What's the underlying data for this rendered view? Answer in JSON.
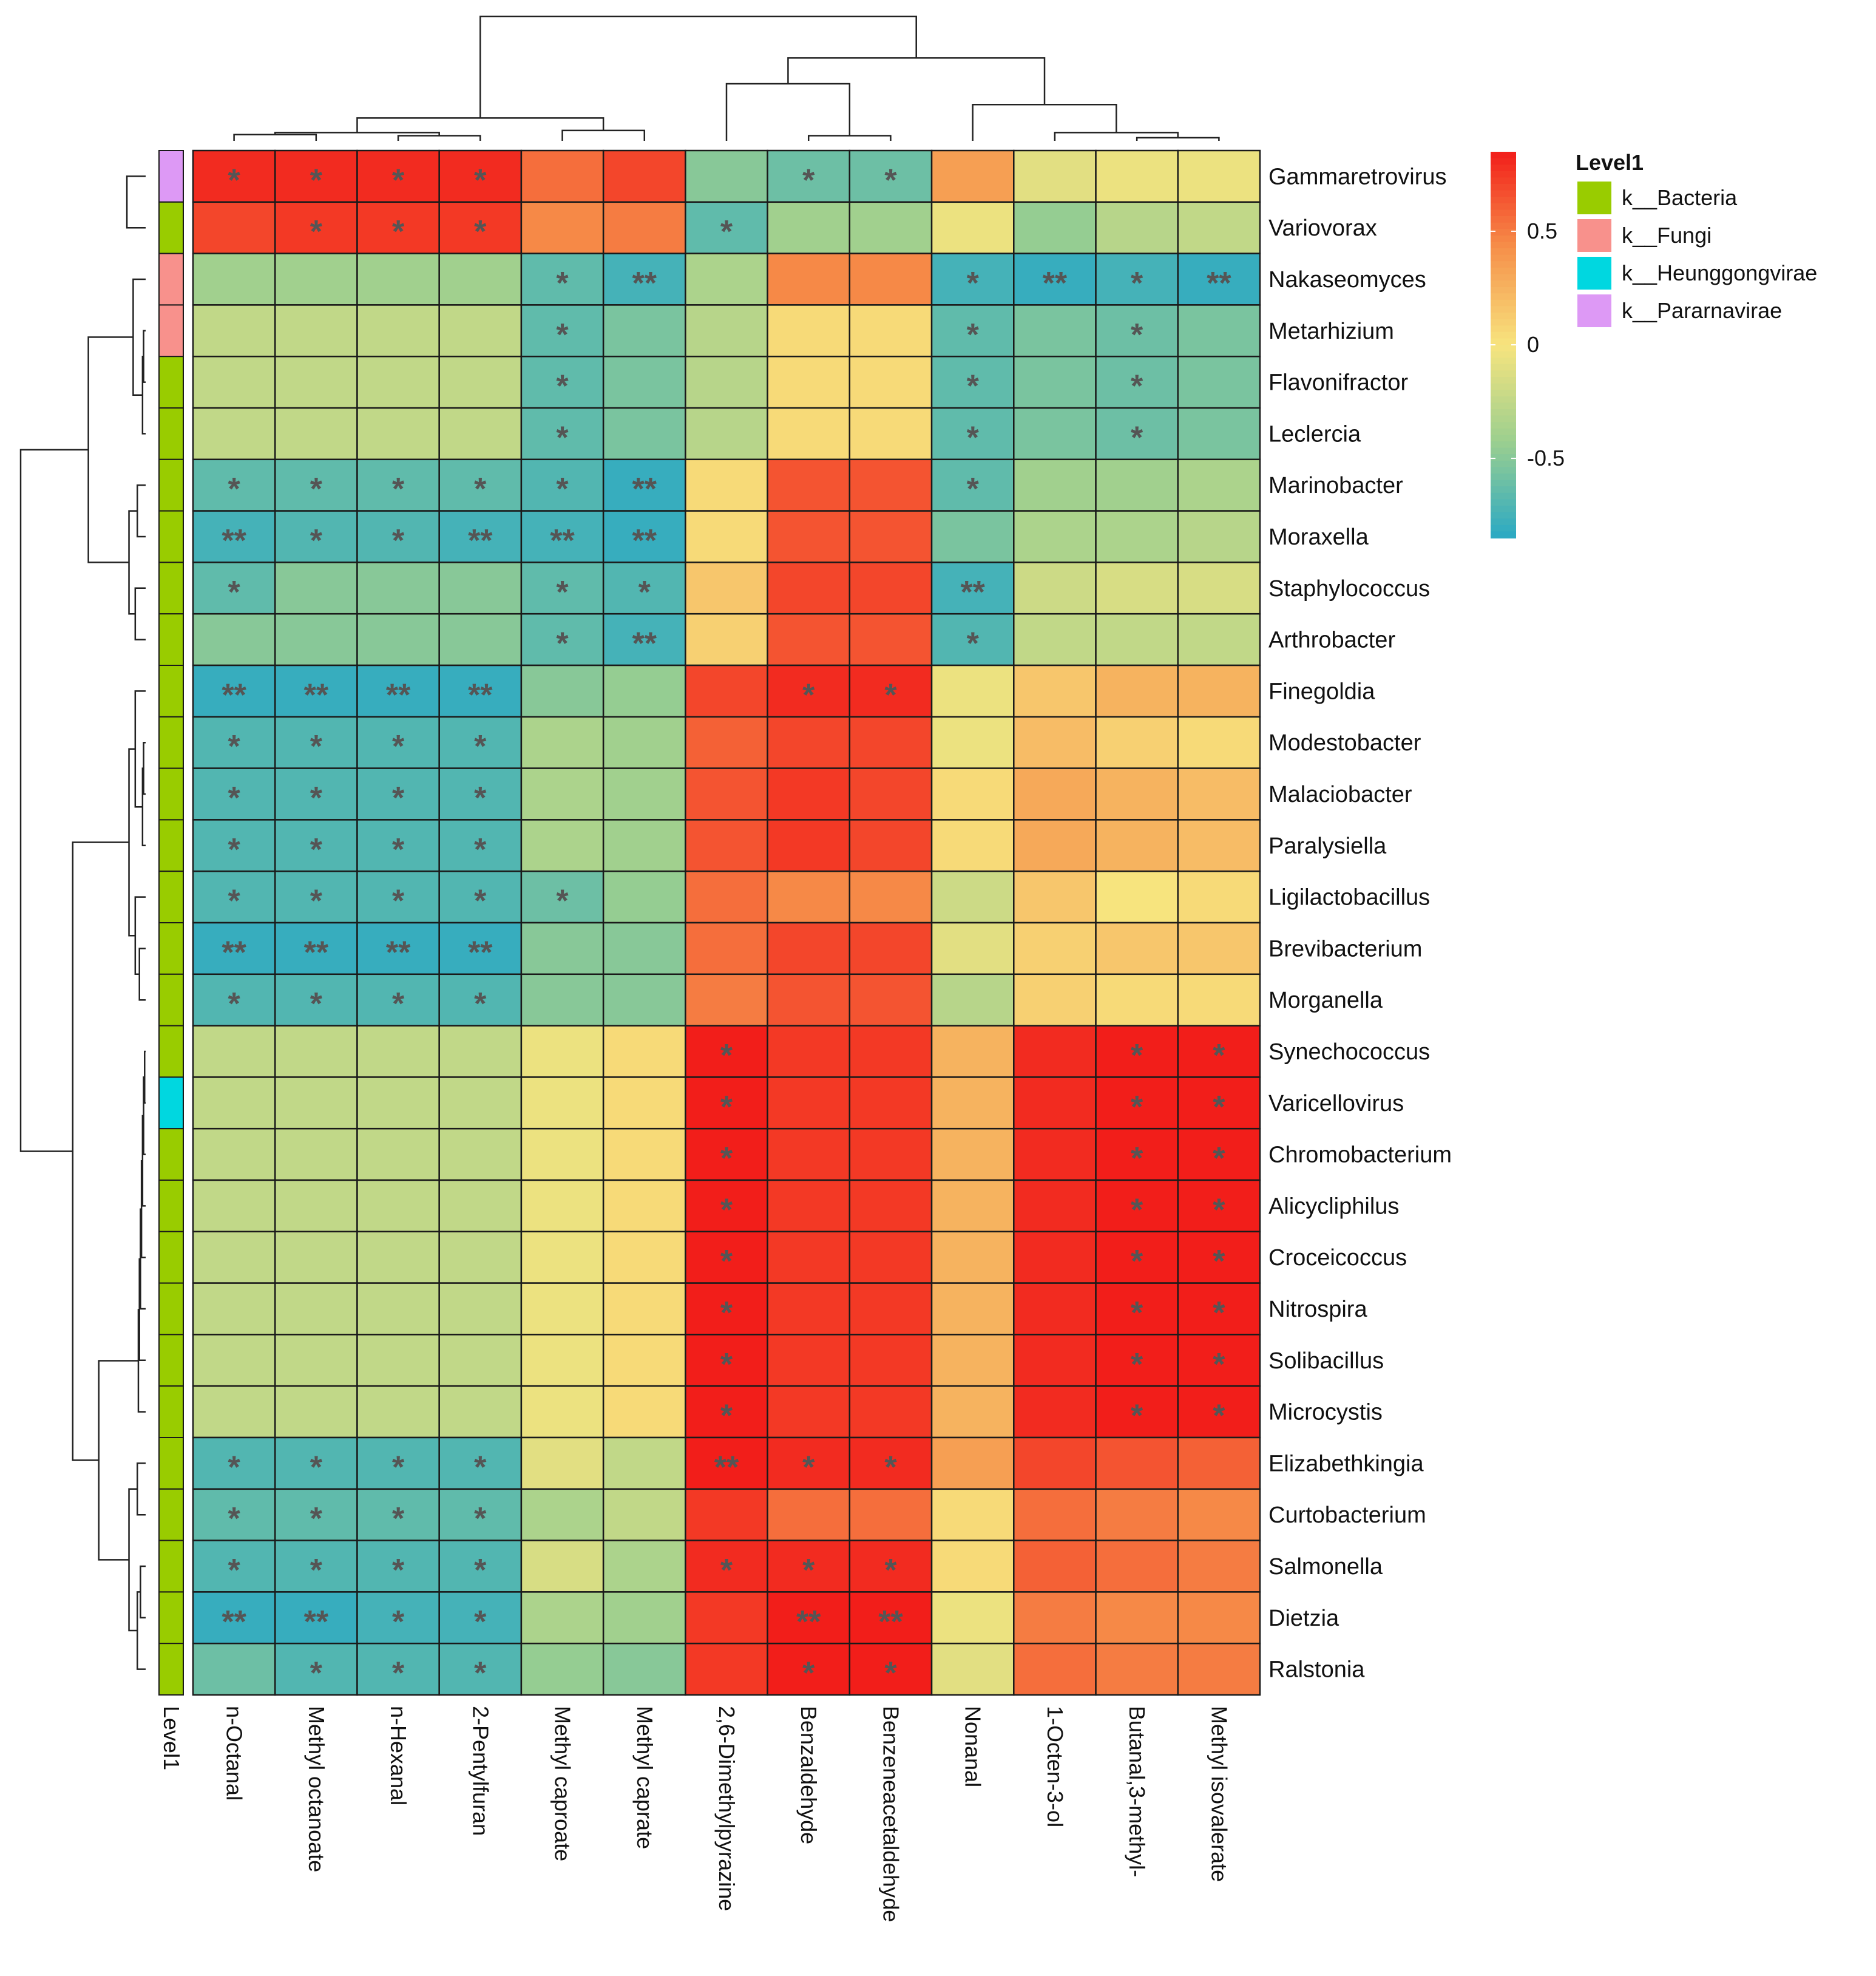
{
  "chart_data": {
    "type": "heatmap",
    "title": "",
    "rows": [
      "Gammaretrovirus",
      "Variovorax",
      "Nakaseomyces",
      "Metarhizium",
      "Flavonifractor",
      "Leclercia",
      "Marinobacter",
      "Moraxella",
      "Staphylococcus",
      "Arthrobacter",
      "Finegoldia",
      "Modestobacter",
      "Malaciobacter",
      "Paralysiella",
      "Ligilactobacillus",
      "Brevibacterium",
      "Morganella",
      "Synechococcus",
      "Varicellovirus",
      "Chromobacterium",
      "Alicycliphilus",
      "Croceicoccus",
      "Nitrospira",
      "Solibacillus",
      "Microcystis",
      "Elizabethkingia",
      "Curtobacterium",
      "Salmonella",
      "Dietzia",
      "Ralstonia"
    ],
    "columns": [
      "n-Octanal",
      "Methyl octanoate",
      "n-Hexanal",
      "2-Pentylfuran",
      "Methyl caproate",
      "Methyl caprate",
      "2,6-Dimethylpyrazine",
      "Benzaldehyde",
      "Benzeneacetaldehyde",
      "Nonanal",
      "1-Octen-3-ol",
      "Butanal,3-methyl-",
      "Methyl isovalerate"
    ],
    "values": [
      [
        0.8,
        0.8,
        0.8,
        0.8,
        0.55,
        0.7,
        -0.5,
        -0.6,
        -0.6,
        0.35,
        -0.1,
        -0.05,
        -0.05
      ],
      [
        0.7,
        0.75,
        0.75,
        0.75,
        0.45,
        0.5,
        -0.65,
        -0.4,
        -0.4,
        -0.05,
        -0.45,
        -0.3,
        -0.25
      ],
      [
        -0.4,
        -0.4,
        -0.4,
        -0.4,
        -0.65,
        -0.75,
        -0.35,
        0.45,
        0.45,
        -0.75,
        -0.8,
        -0.75,
        -0.8
      ],
      [
        -0.25,
        -0.25,
        -0.25,
        -0.25,
        -0.65,
        -0.55,
        -0.3,
        0.05,
        0.05,
        -0.65,
        -0.55,
        -0.6,
        -0.55
      ],
      [
        -0.25,
        -0.25,
        -0.25,
        -0.25,
        -0.65,
        -0.55,
        -0.3,
        0.05,
        0.05,
        -0.65,
        -0.55,
        -0.6,
        -0.55
      ],
      [
        -0.25,
        -0.25,
        -0.25,
        -0.25,
        -0.65,
        -0.55,
        -0.3,
        0.05,
        0.05,
        -0.65,
        -0.55,
        -0.6,
        -0.55
      ],
      [
        -0.65,
        -0.65,
        -0.65,
        -0.65,
        -0.7,
        -0.8,
        0.05,
        0.65,
        0.65,
        -0.65,
        -0.4,
        -0.4,
        -0.35
      ],
      [
        -0.75,
        -0.7,
        -0.7,
        -0.75,
        -0.75,
        -0.8,
        0.05,
        0.65,
        0.65,
        -0.55,
        -0.35,
        -0.35,
        -0.3
      ],
      [
        -0.65,
        -0.5,
        -0.5,
        -0.5,
        -0.65,
        -0.7,
        0.15,
        0.7,
        0.7,
        -0.75,
        -0.2,
        -0.15,
        -0.15
      ],
      [
        -0.5,
        -0.5,
        -0.5,
        -0.5,
        -0.65,
        -0.75,
        0.1,
        0.65,
        0.65,
        -0.7,
        -0.25,
        -0.25,
        -0.25
      ],
      [
        -0.8,
        -0.8,
        -0.8,
        -0.8,
        -0.5,
        -0.45,
        0.7,
        0.8,
        0.8,
        -0.05,
        0.15,
        0.25,
        0.25
      ],
      [
        -0.7,
        -0.7,
        -0.7,
        -0.7,
        -0.35,
        -0.4,
        0.6,
        0.7,
        0.7,
        -0.05,
        0.2,
        0.1,
        0.05
      ],
      [
        -0.7,
        -0.7,
        -0.7,
        -0.7,
        -0.35,
        -0.4,
        0.65,
        0.75,
        0.7,
        0.05,
        0.3,
        0.25,
        0.2
      ],
      [
        -0.7,
        -0.7,
        -0.7,
        -0.7,
        -0.35,
        -0.4,
        0.65,
        0.75,
        0.7,
        0.05,
        0.3,
        0.25,
        0.2
      ],
      [
        -0.7,
        -0.7,
        -0.7,
        -0.7,
        -0.6,
        -0.45,
        0.55,
        0.45,
        0.45,
        -0.2,
        0.15,
        0.0,
        0.05
      ],
      [
        -0.8,
        -0.8,
        -0.8,
        -0.8,
        -0.5,
        -0.5,
        0.55,
        0.7,
        0.7,
        -0.1,
        0.1,
        0.15,
        0.15
      ],
      [
        -0.7,
        -0.7,
        -0.7,
        -0.7,
        -0.5,
        -0.5,
        0.5,
        0.65,
        0.65,
        -0.3,
        0.1,
        0.05,
        0.05
      ],
      [
        -0.25,
        -0.25,
        -0.25,
        -0.25,
        -0.05,
        0.05,
        0.85,
        0.75,
        0.75,
        0.25,
        0.8,
        0.85,
        0.85
      ],
      [
        -0.25,
        -0.25,
        -0.25,
        -0.25,
        -0.05,
        0.05,
        0.85,
        0.75,
        0.75,
        0.25,
        0.8,
        0.85,
        0.85
      ],
      [
        -0.25,
        -0.25,
        -0.25,
        -0.25,
        -0.05,
        0.05,
        0.85,
        0.75,
        0.75,
        0.25,
        0.8,
        0.85,
        0.85
      ],
      [
        -0.25,
        -0.25,
        -0.25,
        -0.25,
        -0.05,
        0.05,
        0.85,
        0.75,
        0.75,
        0.25,
        0.8,
        0.85,
        0.85
      ],
      [
        -0.25,
        -0.25,
        -0.25,
        -0.25,
        -0.05,
        0.05,
        0.85,
        0.75,
        0.75,
        0.25,
        0.8,
        0.85,
        0.85
      ],
      [
        -0.25,
        -0.25,
        -0.25,
        -0.25,
        -0.05,
        0.05,
        0.85,
        0.75,
        0.75,
        0.25,
        0.8,
        0.85,
        0.85
      ],
      [
        -0.25,
        -0.25,
        -0.25,
        -0.25,
        -0.05,
        0.05,
        0.85,
        0.75,
        0.75,
        0.25,
        0.8,
        0.85,
        0.85
      ],
      [
        -0.25,
        -0.25,
        -0.25,
        -0.25,
        -0.05,
        0.05,
        0.85,
        0.75,
        0.75,
        0.25,
        0.8,
        0.85,
        0.85
      ],
      [
        -0.7,
        -0.7,
        -0.7,
        -0.7,
        -0.1,
        -0.25,
        0.85,
        0.8,
        0.8,
        0.35,
        0.7,
        0.65,
        0.6
      ],
      [
        -0.65,
        -0.65,
        -0.65,
        -0.65,
        -0.35,
        -0.25,
        0.75,
        0.55,
        0.55,
        0.05,
        0.55,
        0.5,
        0.45
      ],
      [
        -0.7,
        -0.7,
        -0.7,
        -0.7,
        -0.15,
        -0.35,
        0.8,
        0.8,
        0.8,
        0.05,
        0.6,
        0.55,
        0.5
      ],
      [
        -0.8,
        -0.8,
        -0.75,
        -0.75,
        -0.35,
        -0.4,
        0.75,
        0.85,
        0.85,
        -0.05,
        0.5,
        0.45,
        0.45
      ],
      [
        -0.6,
        -0.7,
        -0.7,
        -0.7,
        -0.45,
        -0.5,
        0.75,
        0.85,
        0.85,
        -0.1,
        0.55,
        0.5,
        0.5
      ]
    ],
    "significance": [
      [
        "*",
        "*",
        "*",
        "*",
        "",
        "",
        "",
        "*",
        "*",
        "",
        "",
        "",
        ""
      ],
      [
        "",
        "*",
        "*",
        "*",
        "",
        "",
        "*",
        "",
        "",
        "",
        "",
        "",
        ""
      ],
      [
        "",
        "",
        "",
        "",
        "*",
        "**",
        "",
        "",
        "",
        "*",
        "**",
        "*",
        "**"
      ],
      [
        "",
        "",
        "",
        "",
        "*",
        "",
        "",
        "",
        "",
        "*",
        "",
        "*",
        ""
      ],
      [
        "",
        "",
        "",
        "",
        "*",
        "",
        "",
        "",
        "",
        "*",
        "",
        "*",
        ""
      ],
      [
        "",
        "",
        "",
        "",
        "*",
        "",
        "",
        "",
        "",
        "*",
        "",
        "*",
        ""
      ],
      [
        "*",
        "*",
        "*",
        "*",
        "*",
        "**",
        "",
        "",
        "",
        "*",
        "",
        "",
        ""
      ],
      [
        "**",
        "*",
        "*",
        "**",
        "**",
        "**",
        "",
        "",
        "",
        "",
        "",
        "",
        ""
      ],
      [
        "*",
        "",
        "",
        "",
        "*",
        "*",
        "",
        "",
        "",
        "**",
        "",
        "",
        ""
      ],
      [
        "",
        "",
        "",
        "",
        "*",
        "**",
        "",
        "",
        "",
        "*",
        "",
        "",
        ""
      ],
      [
        "**",
        "**",
        "**",
        "**",
        "",
        "",
        "",
        "*",
        "*",
        "",
        "",
        "",
        ""
      ],
      [
        "*",
        "*",
        "*",
        "*",
        "",
        "",
        "",
        "",
        "",
        "",
        "",
        "",
        ""
      ],
      [
        "*",
        "*",
        "*",
        "*",
        "",
        "",
        "",
        "",
        "",
        "",
        "",
        "",
        ""
      ],
      [
        "*",
        "*",
        "*",
        "*",
        "",
        "",
        "",
        "",
        "",
        "",
        "",
        "",
        ""
      ],
      [
        "*",
        "*",
        "*",
        "*",
        "*",
        "",
        "",
        "",
        "",
        "",
        "",
        "",
        ""
      ],
      [
        "**",
        "**",
        "**",
        "**",
        "",
        "",
        "",
        "",
        "",
        "",
        "",
        "",
        ""
      ],
      [
        "*",
        "*",
        "*",
        "*",
        "",
        "",
        "",
        "",
        "",
        "",
        "",
        "",
        ""
      ],
      [
        "",
        "",
        "",
        "",
        "",
        "",
        "*",
        "",
        "",
        "",
        "",
        "*",
        "*"
      ],
      [
        "",
        "",
        "",
        "",
        "",
        "",
        "*",
        "",
        "",
        "",
        "",
        "*",
        "*"
      ],
      [
        "",
        "",
        "",
        "",
        "",
        "",
        "*",
        "",
        "",
        "",
        "",
        "*",
        "*"
      ],
      [
        "",
        "",
        "",
        "",
        "",
        "",
        "*",
        "",
        "",
        "",
        "",
        "*",
        "*"
      ],
      [
        "",
        "",
        "",
        "",
        "",
        "",
        "*",
        "",
        "",
        "",
        "",
        "*",
        "*"
      ],
      [
        "",
        "",
        "",
        "",
        "",
        "",
        "*",
        "",
        "",
        "",
        "",
        "*",
        "*"
      ],
      [
        "",
        "",
        "",
        "",
        "",
        "",
        "*",
        "",
        "",
        "",
        "",
        "*",
        "*"
      ],
      [
        "",
        "",
        "",
        "",
        "",
        "",
        "*",
        "",
        "",
        "",
        "",
        "*",
        "*"
      ],
      [
        "*",
        "*",
        "*",
        "*",
        "",
        "",
        "**",
        "*",
        "*",
        "",
        "",
        "",
        ""
      ],
      [
        "*",
        "*",
        "*",
        "*",
        "",
        "",
        "",
        "",
        "",
        "",
        "",
        "",
        ""
      ],
      [
        "*",
        "*",
        "*",
        "*",
        "",
        "",
        "*",
        "*",
        "*",
        "",
        "",
        "",
        ""
      ],
      [
        "**",
        "**",
        "*",
        "*",
        "",
        "",
        "",
        "**",
        "**",
        "",
        "",
        "",
        ""
      ],
      [
        "",
        "*",
        "*",
        "*",
        "",
        "",
        "",
        "*",
        "*",
        "",
        "",
        "",
        ""
      ]
    ],
    "row_annotation": [
      "k__Pararnavirae",
      "k__Bacteria",
      "k__Fungi",
      "k__Fungi",
      "k__Bacteria",
      "k__Bacteria",
      "k__Bacteria",
      "k__Bacteria",
      "k__Bacteria",
      "k__Bacteria",
      "k__Bacteria",
      "k__Bacteria",
      "k__Bacteria",
      "k__Bacteria",
      "k__Bacteria",
      "k__Bacteria",
      "k__Bacteria",
      "k__Bacteria",
      "k__Heunggongvirae",
      "k__Bacteria",
      "k__Bacteria",
      "k__Bacteria",
      "k__Bacteria",
      "k__Bacteria",
      "k__Bacteria",
      "k__Bacteria",
      "k__Bacteria",
      "k__Bacteria",
      "k__Bacteria",
      "k__Bacteria"
    ],
    "annotation_label": "Level1",
    "legend": {
      "title": "Level1",
      "items": [
        {
          "label": "k__Bacteria",
          "color": "#99cc00"
        },
        {
          "label": "k__Fungi",
          "color": "#f8918c"
        },
        {
          "label": "k__Heunggongvirae",
          "color": "#00d7e0"
        },
        {
          "label": "k__Pararnavirae",
          "color": "#dd99f5"
        }
      ]
    },
    "color_scale": {
      "min": -0.85,
      "max": 0.85,
      "ticks": [
        0.5,
        0,
        -0.5
      ],
      "tick_labels": [
        "0.5",
        "0",
        "-0.5"
      ],
      "colors": [
        "#2aa9c4",
        "#9ccf8f",
        "#f7e47e",
        "#f6904a",
        "#f21e1a"
      ]
    }
  }
}
